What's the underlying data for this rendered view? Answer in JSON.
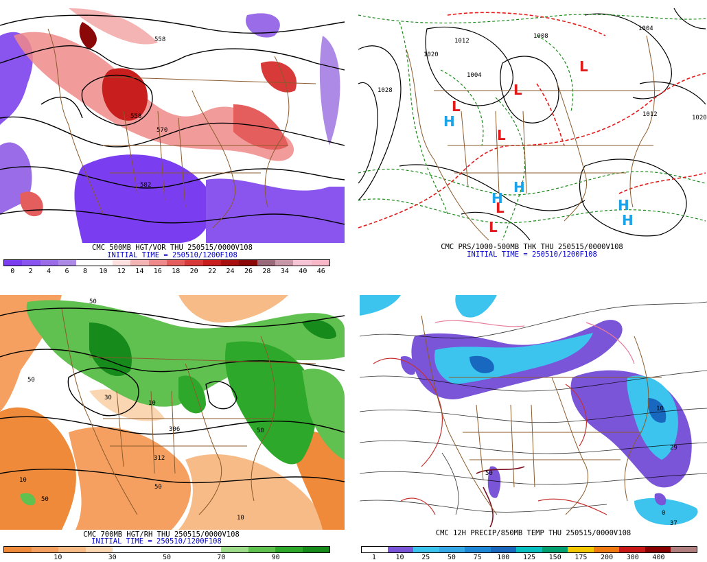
{
  "panels": [
    {
      "title": "CMC 500MB HGT/VOR THU 250515/0000V108",
      "subtitle": "INITIAL TIME = 250510/1200F108",
      "contour_labels": [
        "558",
        "558",
        "570",
        "582"
      ],
      "legend": {
        "ticks": [
          "0",
          "2",
          "4",
          "6",
          "8",
          "10",
          "12",
          "14",
          "16",
          "18",
          "20",
          "22",
          "24",
          "26",
          "28",
          "34",
          "40",
          "46"
        ],
        "colors": [
          "#7a3df0",
          "#8a55ee",
          "#9a6ce8",
          "#ad8ae6",
          "#ffffff",
          "#ffffff",
          "#fde0e0",
          "#f5b4b4",
          "#ee8a8a",
          "#e45e5e",
          "#d83a3a",
          "#c81e1e",
          "#a81010",
          "#8a0808",
          "#9a6a7a",
          "#c898a8",
          "#f6c4d4",
          "#f8b8c8"
        ]
      }
    },
    {
      "title": "CMC PRS/1000-500MB THK THU 250515/0000V108",
      "subtitle": "INITIAL TIME = 250510/1200F108",
      "contour_labels": [
        "1028",
        "1004",
        "1012",
        "1020",
        "1020",
        "1008",
        "1012",
        "1004"
      ],
      "pressure_centers": [
        {
          "label": "H",
          "color": "#1aa3e8"
        },
        {
          "label": "H",
          "color": "#1aa3e8"
        },
        {
          "label": "H",
          "color": "#1aa3e8"
        },
        {
          "label": "H",
          "color": "#1aa3e8"
        },
        {
          "label": "H",
          "color": "#1aa3e8"
        },
        {
          "label": "L",
          "color": "#e31a1a"
        },
        {
          "label": "L",
          "color": "#e31a1a"
        },
        {
          "label": "L",
          "color": "#e31a1a"
        },
        {
          "label": "L",
          "color": "#e31a1a"
        },
        {
          "label": "L",
          "color": "#e31a1a"
        },
        {
          "label": "L",
          "color": "#e31a1a"
        }
      ]
    },
    {
      "title": "CMC 700MB HGT/RH THU 250515/0000V108",
      "subtitle": "INITIAL TIME = 250510/1200F108",
      "contour_labels": [
        "50",
        "10",
        "50",
        "10",
        "30",
        "50",
        "10",
        "312",
        "306",
        "50",
        "50"
      ],
      "legend": {
        "ticks": [
          "10",
          "30",
          "50",
          "70",
          "90"
        ],
        "colors": [
          "#ee8a3a",
          "#f5a060",
          "#f7bb88",
          "#fbd6b2",
          "#ffffff",
          "#ffffff",
          "#ffffff",
          "#ffffff",
          "#9edc8c",
          "#60c050",
          "#2ea82a",
          "#168a1a"
        ]
      }
    },
    {
      "title": "CMC 12H PRECIP/850MB TEMP THU 250515/0000V108",
      "contour_labels": [
        "50",
        "0",
        "10",
        "29",
        "37"
      ],
      "legend": {
        "ticks": [
          "1",
          "10",
          "25",
          "50",
          "75",
          "100",
          "125",
          "150",
          "175",
          "200",
          "300",
          "400"
        ],
        "colors": [
          "#ffffff",
          "#7a55d8",
          "#3cc4ee",
          "#35a8e8",
          "#1e88d8",
          "#1868c0",
          "#08c0c0",
          "#00a070",
          "#f2c800",
          "#f07a10",
          "#c81818",
          "#8a0000",
          "#b08080"
        ]
      }
    }
  ]
}
